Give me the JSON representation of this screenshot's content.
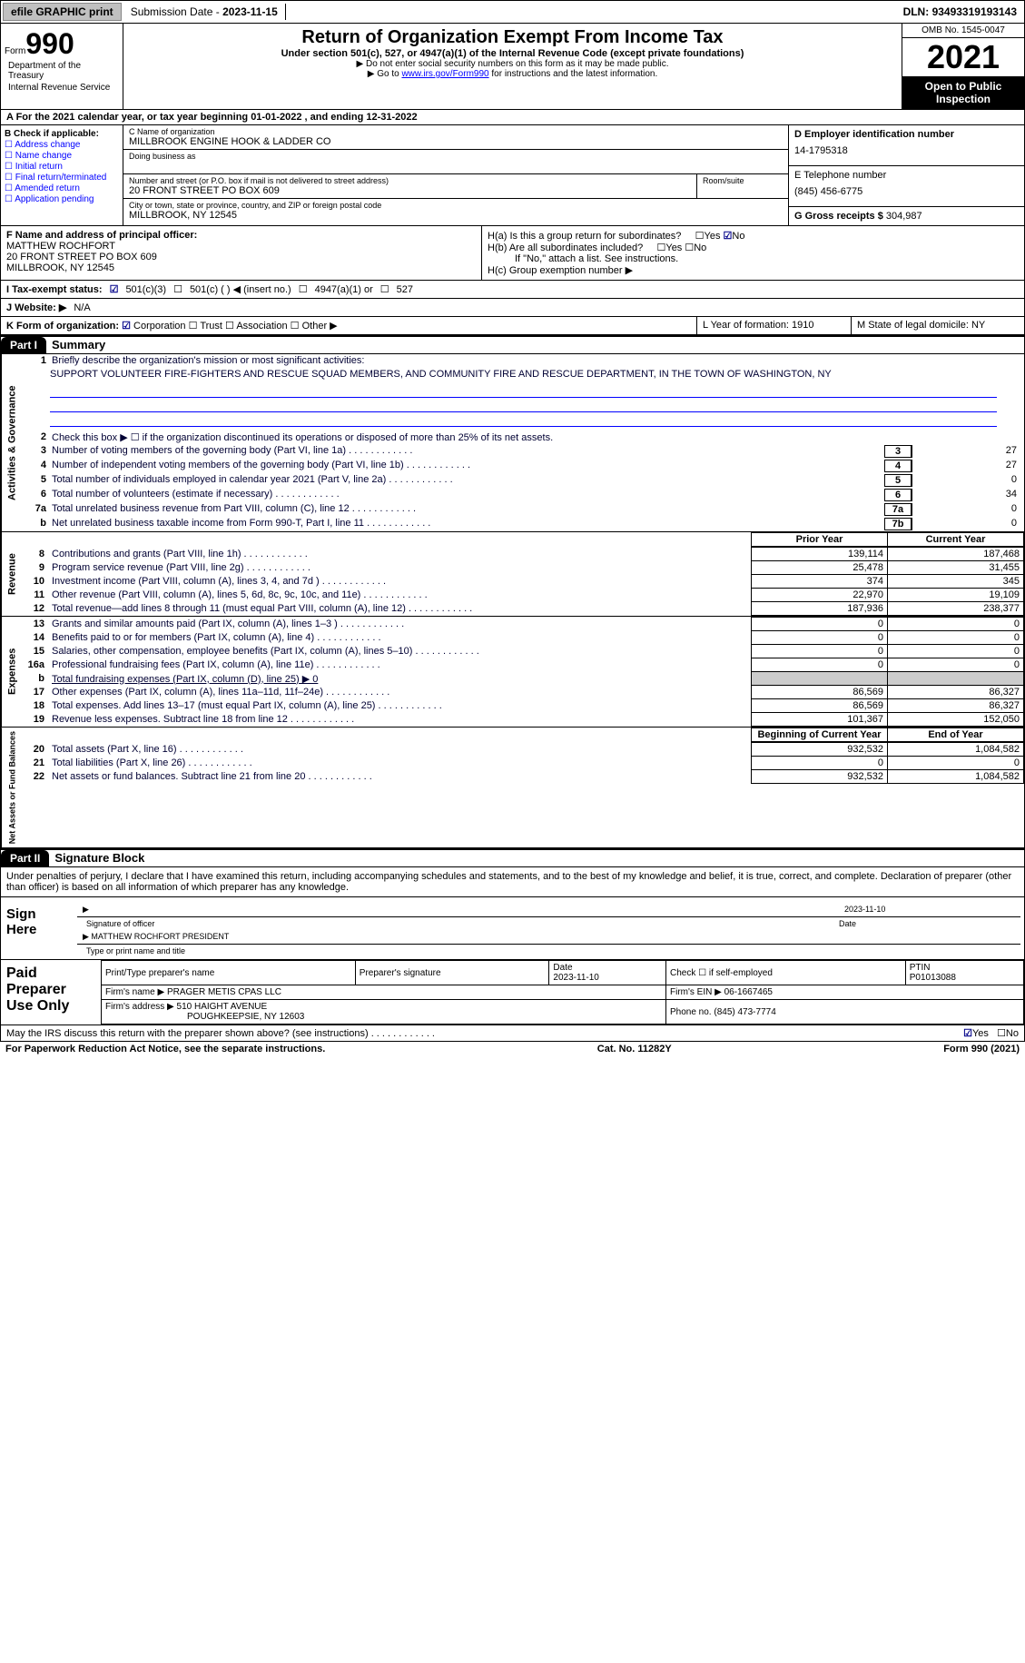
{
  "topbar": {
    "efile": "efile GRAPHIC print",
    "sub_label": "Submission Date - ",
    "sub_date": "2023-11-15",
    "dln_label": "DLN: ",
    "dln": "93493319193143"
  },
  "header": {
    "form_word": "Form",
    "form_num": "990",
    "title": "Return of Organization Exempt From Income Tax",
    "subtitle": "Under section 501(c), 527, or 4947(a)(1) of the Internal Revenue Code (except private foundations)",
    "note1": "▶ Do not enter social security numbers on this form as it may be made public.",
    "note2_pre": "▶ Go to ",
    "note2_link": "www.irs.gov/Form990",
    "note2_post": " for instructions and the latest information.",
    "dept1": "Department of the Treasury",
    "dept2": "Internal Revenue Service",
    "omb": "OMB No. 1545-0047",
    "year": "2021",
    "open": "Open to Public Inspection"
  },
  "row_a": "A For the 2021 calendar year, or tax year beginning 01-01-2022   , and ending 12-31-2022",
  "col_b": {
    "title": "B Check if applicable:",
    "opts": [
      "Address change",
      "Name change",
      "Initial return",
      "Final return/terminated",
      "Amended return",
      "Application pending"
    ]
  },
  "col_c": {
    "name_lbl": "C Name of organization",
    "name": "MILLBROOK ENGINE HOOK & LADDER CO",
    "dba_lbl": "Doing business as",
    "addr_lbl": "Number and street (or P.O. box if mail is not delivered to street address)",
    "addr": "20 FRONT STREET PO BOX 609",
    "room_lbl": "Room/suite",
    "city_lbl": "City or town, state or province, country, and ZIP or foreign postal code",
    "city": "MILLBROOK, NY  12545"
  },
  "col_d": {
    "ein_lbl": "D Employer identification number",
    "ein": "14-1795318",
    "tel_lbl": "E Telephone number",
    "tel": "(845) 456-6775",
    "gross_lbl": "G Gross receipts $ ",
    "gross": "304,987"
  },
  "col_f": {
    "lbl": "F Name and address of principal officer:",
    "name": "MATTHEW ROCHFORT",
    "addr1": "20 FRONT STREET PO BOX 609",
    "addr2": "MILLBROOK, NY  12545"
  },
  "col_h": {
    "ha": "H(a)  Is this a group return for subordinates?",
    "hb": "H(b)  Are all subordinates included?",
    "hb_note": "If \"No,\" attach a list. See instructions.",
    "hc": "H(c)  Group exemption number ▶"
  },
  "row_i": {
    "lbl": "I  Tax-exempt status:",
    "o1": "501(c)(3)",
    "o2": "501(c) (  ) ◀ (insert no.)",
    "o3": "4947(a)(1) or",
    "o4": "527"
  },
  "row_j": {
    "lbl": "J  Website: ▶",
    "val": "N/A"
  },
  "row_k": {
    "lbl": "K Form of organization:",
    "opts": [
      "Corporation",
      "Trust",
      "Association",
      "Other ▶"
    ],
    "l": "L Year of formation: 1910",
    "m": "M State of legal domicile: NY"
  },
  "part1": {
    "hdr": "Part I",
    "title": "Summary"
  },
  "summary": {
    "q1": "Briefly describe the organization's mission or most significant activities:",
    "mission": "SUPPORT VOLUNTEER FIRE-FIGHTERS AND RESCUE SQUAD MEMBERS, AND COMMUNITY FIRE AND RESCUE DEPARTMENT, IN THE TOWN OF WASHINGTON, NY",
    "q2": "Check this box ▶ ☐ if the organization discontinued its operations or disposed of more than 25% of its net assets.",
    "lines": [
      {
        "n": "3",
        "d": "Number of voting members of the governing body (Part VI, line 1a)",
        "b": "3",
        "v": "27"
      },
      {
        "n": "4",
        "d": "Number of independent voting members of the governing body (Part VI, line 1b)",
        "b": "4",
        "v": "27"
      },
      {
        "n": "5",
        "d": "Total number of individuals employed in calendar year 2021 (Part V, line 2a)",
        "b": "5",
        "v": "0"
      },
      {
        "n": "6",
        "d": "Total number of volunteers (estimate if necessary)",
        "b": "6",
        "v": "34"
      },
      {
        "n": "7a",
        "d": "Total unrelated business revenue from Part VIII, column (C), line 12",
        "b": "7a",
        "v": "0"
      },
      {
        "n": "b",
        "d": "Net unrelated business taxable income from Form 990-T, Part I, line 11",
        "b": "7b",
        "v": "0"
      }
    ]
  },
  "fin": {
    "hdr_prior": "Prior Year",
    "hdr_curr": "Current Year",
    "rev": [
      {
        "n": "8",
        "d": "Contributions and grants (Part VIII, line 1h)",
        "p": "139,114",
        "c": "187,468"
      },
      {
        "n": "9",
        "d": "Program service revenue (Part VIII, line 2g)",
        "p": "25,478",
        "c": "31,455"
      },
      {
        "n": "10",
        "d": "Investment income (Part VIII, column (A), lines 3, 4, and 7d )",
        "p": "374",
        "c": "345"
      },
      {
        "n": "11",
        "d": "Other revenue (Part VIII, column (A), lines 5, 6d, 8c, 9c, 10c, and 11e)",
        "p": "22,970",
        "c": "19,109"
      },
      {
        "n": "12",
        "d": "Total revenue—add lines 8 through 11 (must equal Part VIII, column (A), line 12)",
        "p": "187,936",
        "c": "238,377"
      }
    ],
    "exp": [
      {
        "n": "13",
        "d": "Grants and similar amounts paid (Part IX, column (A), lines 1–3 )",
        "p": "0",
        "c": "0"
      },
      {
        "n": "14",
        "d": "Benefits paid to or for members (Part IX, column (A), line 4)",
        "p": "0",
        "c": "0"
      },
      {
        "n": "15",
        "d": "Salaries, other compensation, employee benefits (Part IX, column (A), lines 5–10)",
        "p": "0",
        "c": "0"
      },
      {
        "n": "16a",
        "d": "Professional fundraising fees (Part IX, column (A), line 11e)",
        "p": "0",
        "c": "0"
      },
      {
        "n": "b",
        "d": "Total fundraising expenses (Part IX, column (D), line 25) ▶ 0",
        "grey": true
      },
      {
        "n": "17",
        "d": "Other expenses (Part IX, column (A), lines 11a–11d, 11f–24e)",
        "p": "86,569",
        "c": "86,327"
      },
      {
        "n": "18",
        "d": "Total expenses. Add lines 13–17 (must equal Part IX, column (A), line 25)",
        "p": "86,569",
        "c": "86,327"
      },
      {
        "n": "19",
        "d": "Revenue less expenses. Subtract line 18 from line 12",
        "p": "101,367",
        "c": "152,050"
      }
    ],
    "hdr_beg": "Beginning of Current Year",
    "hdr_end": "End of Year",
    "net": [
      {
        "n": "20",
        "d": "Total assets (Part X, line 16)",
        "p": "932,532",
        "c": "1,084,582"
      },
      {
        "n": "21",
        "d": "Total liabilities (Part X, line 26)",
        "p": "0",
        "c": "0"
      },
      {
        "n": "22",
        "d": "Net assets or fund balances. Subtract line 21 from line 20",
        "p": "932,532",
        "c": "1,084,582"
      }
    ]
  },
  "part2": {
    "hdr": "Part II",
    "title": "Signature Block"
  },
  "sig": {
    "decl": "Under penalties of perjury, I declare that I have examined this return, including accompanying schedules and statements, and to the best of my knowledge and belief, it is true, correct, and complete. Declaration of preparer (other than officer) is based on all information of which preparer has any knowledge.",
    "sign_here": "Sign Here",
    "sig_of": "Signature of officer",
    "date": "Date",
    "date_val": "2023-11-10",
    "name": "MATTHEW ROCHFORT  PRESIDENT",
    "name_lbl": "Type or print name and title"
  },
  "paid": {
    "lbl": "Paid Preparer Use Only",
    "h1": "Print/Type preparer's name",
    "h2": "Preparer's signature",
    "h3": "Date",
    "h3v": "2023-11-10",
    "h4": "Check ☐ if self-employed",
    "h5": "PTIN",
    "h5v": "P01013088",
    "firm_lbl": "Firm's name    ▶",
    "firm": "PRAGER METIS CPAS LLC",
    "ein_lbl": "Firm's EIN ▶",
    "ein": "06-1667465",
    "addr_lbl": "Firm's address ▶",
    "addr1": "510 HAIGHT AVENUE",
    "addr2": "POUGHKEEPSIE, NY  12603",
    "ph_lbl": "Phone no.",
    "ph": "(845) 473-7774"
  },
  "footer": {
    "q": "May the IRS discuss this return with the preparer shown above? (see instructions)",
    "pra": "For Paperwork Reduction Act Notice, see the separate instructions.",
    "cat": "Cat. No. 11282Y",
    "form": "Form 990 (2021)"
  }
}
